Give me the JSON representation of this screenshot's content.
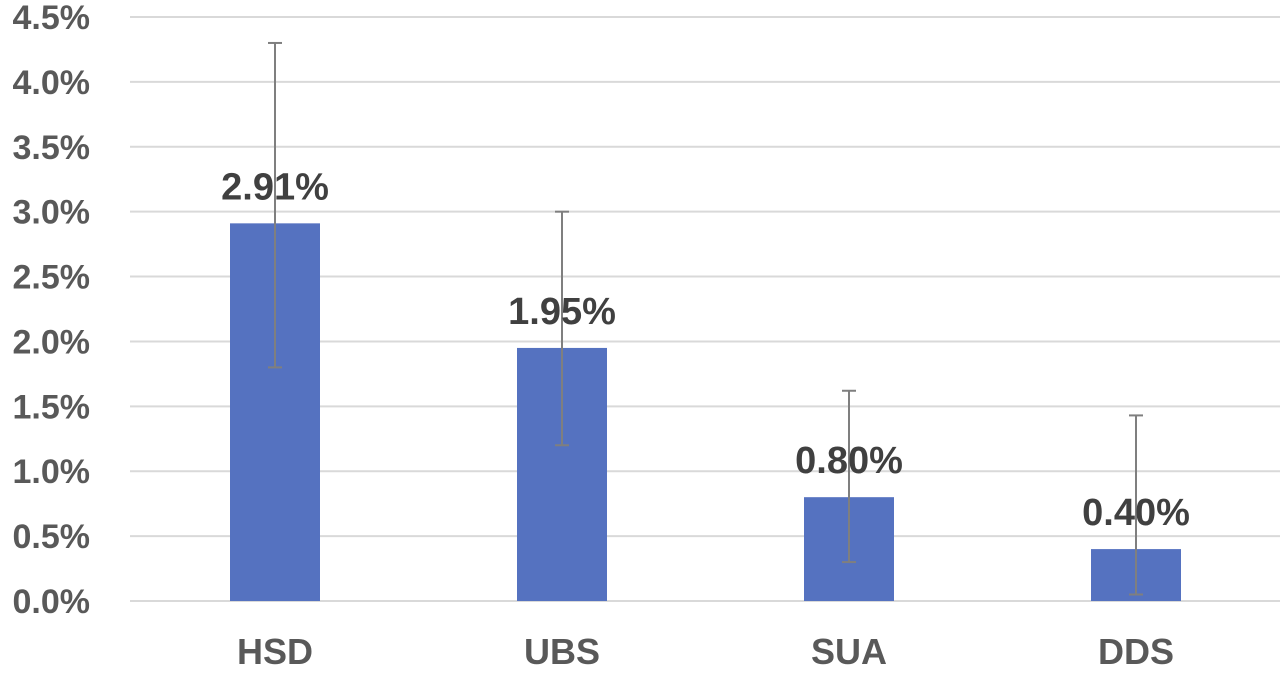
{
  "chart_data": {
    "type": "bar",
    "title": "",
    "xlabel": "",
    "ylabel": "",
    "categories": [
      "HSD",
      "UBS",
      "SUA",
      "DDS"
    ],
    "series": [
      {
        "values": [
          2.91,
          1.95,
          0.8,
          0.4
        ],
        "data_labels": [
          "2.91%",
          "1.95%",
          "0.80%",
          "0.40%"
        ],
        "error_low": [
          1.8,
          1.2,
          0.3,
          0.05
        ],
        "error_high": [
          4.3,
          3.0,
          1.62,
          1.43
        ],
        "color": "#5572c0"
      }
    ],
    "ylim": [
      0,
      4.5
    ],
    "yticks": [
      0,
      0.5,
      1.0,
      1.5,
      2.0,
      2.5,
      3.0,
      3.5,
      4.0,
      4.5
    ],
    "ytick_labels": [
      "0.0%",
      "0.5%",
      "1.0%",
      "1.5%",
      "2.0%",
      "2.5%",
      "3.0%",
      "3.5%",
      "4.0%",
      "4.5%"
    ],
    "grid": true,
    "legend": "none"
  }
}
